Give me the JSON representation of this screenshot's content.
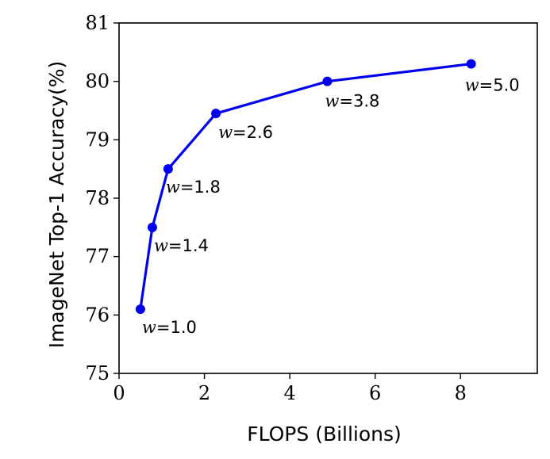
{
  "chart_data": {
    "type": "line",
    "title": "",
    "xlabel": "FLOPS (Billions)",
    "ylabel": "ImageNet Top-1 Accuracy(%)",
    "xlim": [
      0,
      9.8
    ],
    "ylim": [
      75,
      81
    ],
    "x_ticks": [
      0,
      2,
      4,
      6,
      8
    ],
    "y_ticks": [
      75,
      76,
      77,
      78,
      79,
      80,
      81
    ],
    "grid": false,
    "line_color": "#0000ee",
    "series": [
      {
        "x": [
          0.5,
          0.78,
          1.15,
          2.27,
          4.88,
          8.25
        ],
        "y": [
          76.1,
          77.5,
          78.5,
          79.45,
          80.0,
          80.3
        ],
        "labels": [
          "=1.0",
          "=1.4",
          "=1.8",
          "=2.6",
          "=3.8",
          "=5.0"
        ],
        "label_var": "w"
      }
    ]
  }
}
